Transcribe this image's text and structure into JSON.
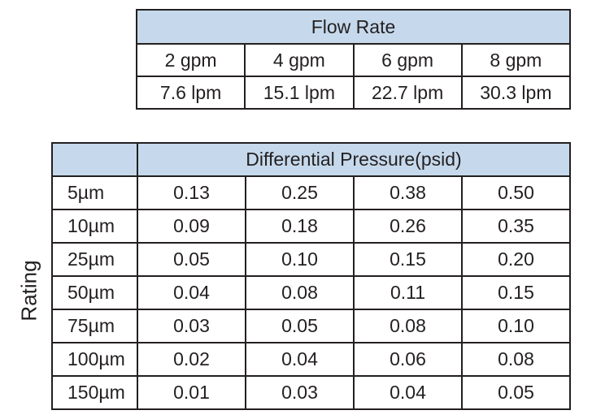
{
  "flow_rate": {
    "title": "Flow Rate",
    "gpm": [
      "2 gpm",
      "4 gpm",
      "6 gpm",
      "8 gpm"
    ],
    "lpm": [
      "7.6 lpm",
      "15.1 lpm",
      "22.7 lpm",
      "30.3 lpm"
    ]
  },
  "pressure": {
    "title": "Differential Pressure(psid)",
    "row_axis_label": "Rating",
    "rows": [
      {
        "rating": "5µm",
        "values": [
          "0.13",
          "0.25",
          "0.38",
          "0.50"
        ]
      },
      {
        "rating": "10µm",
        "values": [
          "0.09",
          "0.18",
          "0.26",
          "0.35"
        ]
      },
      {
        "rating": "25µm",
        "values": [
          "0.05",
          "0.10",
          "0.15",
          "0.20"
        ]
      },
      {
        "rating": "50µm",
        "values": [
          "0.04",
          "0.08",
          "0.11",
          "0.15"
        ]
      },
      {
        "rating": "75µm",
        "values": [
          "0.03",
          "0.05",
          "0.08",
          "0.10"
        ]
      },
      {
        "rating": "100µm",
        "values": [
          "0.02",
          "0.04",
          "0.06",
          "0.08"
        ]
      },
      {
        "rating": "150µm",
        "values": [
          "0.01",
          "0.03",
          "0.04",
          "0.05"
        ]
      }
    ]
  },
  "colors": {
    "header_fill": "#c6d9ec",
    "border": "#231f20"
  }
}
